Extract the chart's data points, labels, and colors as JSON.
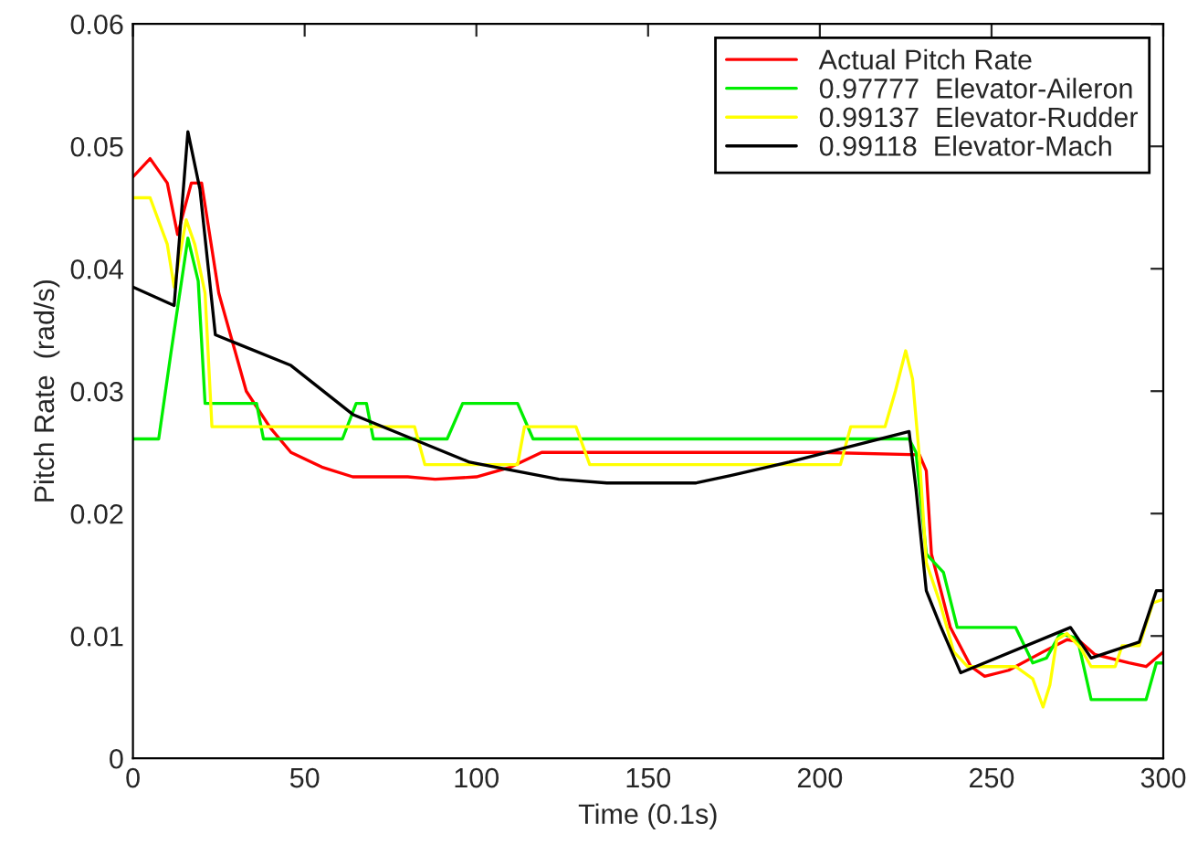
{
  "chart_data": {
    "type": "line",
    "xlabel": "Time (0.1s)",
    "ylabel": "Pitch Rate  (rad/s)",
    "xlim": [
      0,
      300
    ],
    "ylim": [
      0,
      0.06
    ],
    "xticks": [
      0,
      50,
      100,
      150,
      200,
      250,
      300
    ],
    "yticks": [
      0,
      0.01,
      0.02,
      0.03,
      0.04,
      0.05,
      0.06
    ],
    "grid": false,
    "legend": "top right",
    "series": [
      {
        "name": "Actual Pitch Rate",
        "color": "#ff0000",
        "x": [
          0,
          5,
          10,
          13,
          17,
          20,
          25,
          33,
          40,
          46,
          55,
          64,
          80,
          88,
          100,
          110,
          119,
          150,
          200,
          229,
          231,
          232.5,
          238,
          244,
          248,
          255,
          265,
          272,
          276,
          280,
          290,
          295,
          300
        ],
        "values": [
          0.0475,
          0.049,
          0.047,
          0.0428,
          0.047,
          0.047,
          0.038,
          0.03,
          0.027,
          0.025,
          0.0238,
          0.023,
          0.023,
          0.0228,
          0.023,
          0.0238,
          0.025,
          0.025,
          0.025,
          0.0248,
          0.0235,
          0.0167,
          0.0107,
          0.0075,
          0.0067,
          0.0072,
          0.0087,
          0.0097,
          0.0095,
          0.0085,
          0.0078,
          0.0075,
          0.0087
        ]
      },
      {
        "name": "0.97777  Elevator-Aileron",
        "color": "#00ee00",
        "x": [
          0,
          7.5,
          11,
          16,
          19,
          21,
          36,
          38,
          61,
          65,
          68,
          70,
          91.5,
          96,
          112,
          116.5,
          226,
          228,
          231,
          236,
          240,
          257,
          262,
          266,
          270,
          275,
          279,
          295,
          298,
          300
        ],
        "values": [
          0.0261,
          0.0261,
          0.033,
          0.0425,
          0.039,
          0.029,
          0.029,
          0.0261,
          0.0261,
          0.029,
          0.029,
          0.0261,
          0.0261,
          0.029,
          0.029,
          0.0261,
          0.0261,
          0.025,
          0.0167,
          0.0152,
          0.0107,
          0.0107,
          0.0078,
          0.0082,
          0.0102,
          0.0098,
          0.0048,
          0.0048,
          0.0078,
          0.0078
        ]
      },
      {
        "name": "0.99137  Elevator-Rudder",
        "color": "#ffff00",
        "x": [
          0,
          5,
          10,
          12,
          15.5,
          18,
          21,
          23,
          82,
          85,
          112,
          114,
          129,
          133,
          206,
          209,
          219,
          222,
          225,
          227,
          229,
          231,
          235,
          239,
          243,
          257,
          262,
          265,
          267,
          269,
          272,
          276,
          279,
          286,
          288,
          293,
          297,
          300
        ],
        "values": [
          0.0458,
          0.0458,
          0.042,
          0.0385,
          0.044,
          0.042,
          0.038,
          0.0271,
          0.0271,
          0.024,
          0.024,
          0.0271,
          0.0271,
          0.024,
          0.024,
          0.0271,
          0.0271,
          0.03,
          0.0333,
          0.031,
          0.0246,
          0.016,
          0.0127,
          0.0087,
          0.0075,
          0.0075,
          0.0065,
          0.0042,
          0.006,
          0.0097,
          0.0102,
          0.009,
          0.0075,
          0.0075,
          0.0092,
          0.0092,
          0.0127,
          0.013
        ]
      },
      {
        "name": "0.99118  Elevator-Mach",
        "color": "#000000",
        "x": [
          0,
          12,
          16,
          19.5,
          24,
          46,
          64,
          98,
          124,
          138,
          164,
          174,
          191,
          226,
          228,
          231,
          235,
          241,
          273,
          279,
          293,
          298,
          300
        ],
        "values": [
          0.0385,
          0.037,
          0.0512,
          0.0465,
          0.0346,
          0.0321,
          0.0281,
          0.0242,
          0.0228,
          0.0225,
          0.0225,
          0.0231,
          0.0242,
          0.0267,
          0.022,
          0.0137,
          0.0109,
          0.007,
          0.0107,
          0.0082,
          0.0095,
          0.0137,
          0.0137
        ]
      }
    ]
  }
}
